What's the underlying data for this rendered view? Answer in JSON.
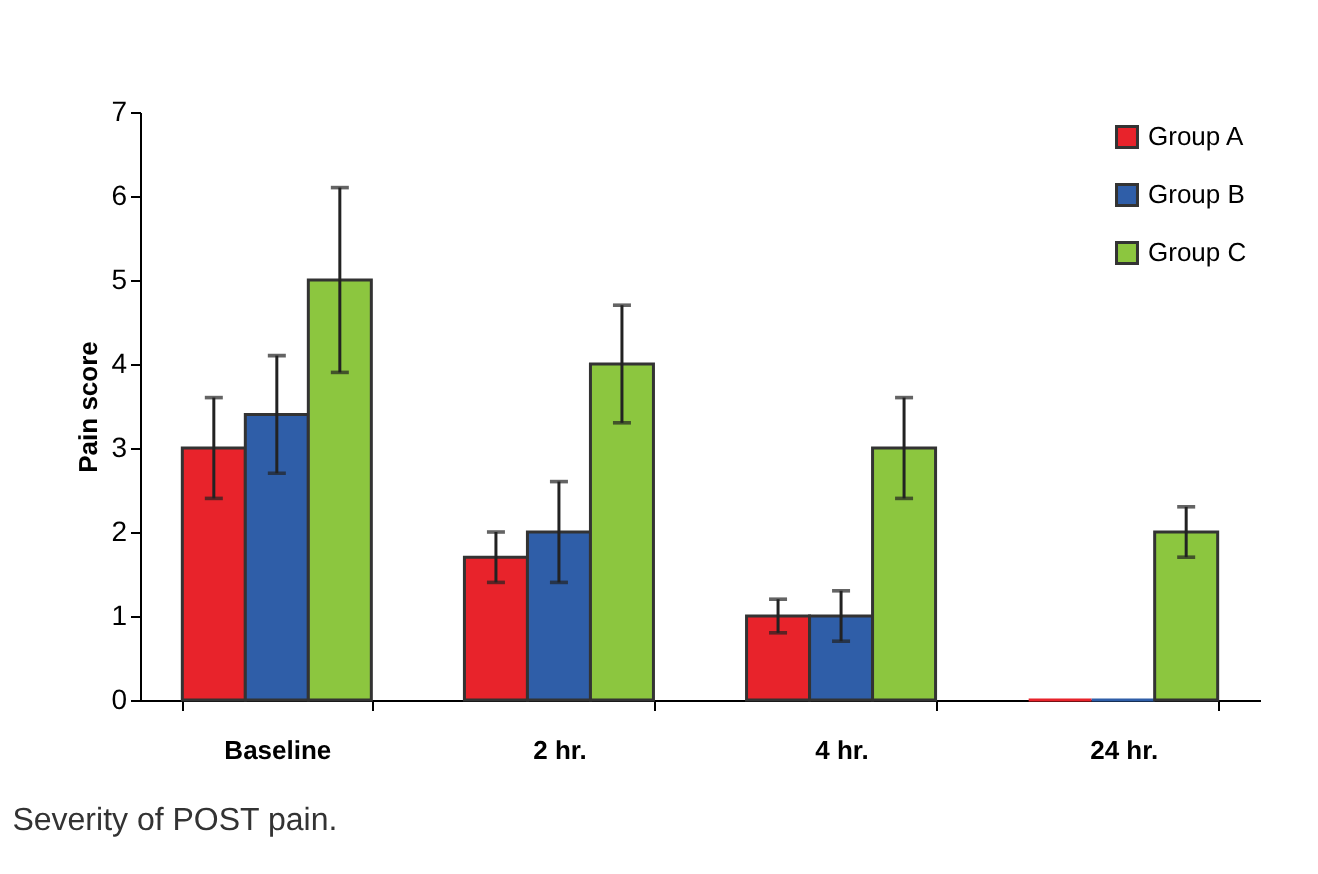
{
  "chart_data": {
    "type": "bar",
    "ylabel": "Pain score",
    "categories": [
      "Baseline",
      "2 hr.",
      "4 hr.",
      "24 hr."
    ],
    "series": [
      {
        "name": "Group A",
        "color": "#e8232b",
        "values": [
          3,
          1.7,
          1,
          0
        ],
        "errors": [
          [
            2.4,
            3.6
          ],
          [
            1.4,
            2.0
          ],
          [
            0.8,
            1.2
          ],
          null
        ]
      },
      {
        "name": "Group B",
        "color": "#2f5ea8",
        "values": [
          3.4,
          2,
          1,
          0
        ],
        "errors": [
          [
            2.7,
            4.1
          ],
          [
            1.4,
            2.6
          ],
          [
            0.7,
            1.3
          ],
          null
        ]
      },
      {
        "name": "Group C",
        "color": "#8cc63f",
        "values": [
          5,
          4,
          3,
          2
        ],
        "errors": [
          [
            3.9,
            6.1
          ],
          [
            3.3,
            4.7
          ],
          [
            2.4,
            3.6
          ],
          [
            1.7,
            2.3
          ]
        ]
      }
    ],
    "ylim": [
      0,
      7
    ],
    "yticks": [
      0,
      1,
      2,
      3,
      4,
      5,
      6,
      7
    ],
    "grid": false,
    "legend": "top right",
    "annotations": [
      "Severity of POST pain."
    ]
  }
}
